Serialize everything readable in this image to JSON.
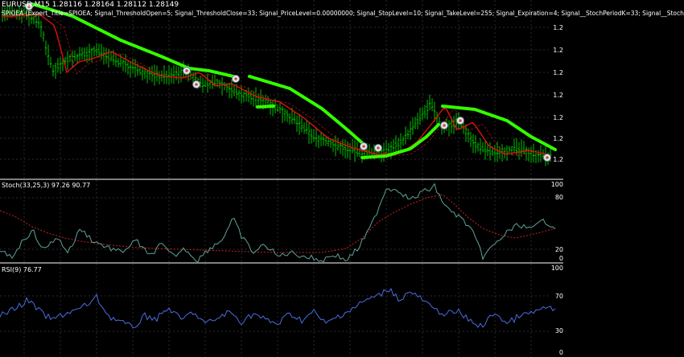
{
  "main": {
    "symbol_line": "EURUSD,M15  1.28116 1.28164 1.28112 1.28149",
    "ea_line": "SPIOEA (Expert_Title=SPIOEA; Signal_ThresholdOpen=5; Signal_ThresholdClose=33; Signal_PriceLevel=0.00000000; Signal_StopLevel=10; Signal_TakeLevel=255; Signal_Expiration=4; Signal__StochPeriodK=33; Signal__Stoch",
    "scale": [
      "1.2",
      "1.2",
      "1.2",
      "1.2",
      "1.2",
      "1.2",
      "1.2"
    ],
    "colors": {
      "bars": "#00c000",
      "ma": "#e01010",
      "stop": "#33ff00",
      "grid": "#2a2a2a"
    }
  },
  "stoch": {
    "label": "Stoch(33,25,3) 97.26 90.77",
    "scale": [
      "100",
      "80",
      "20",
      "0"
    ],
    "colors": {
      "main": "#5fa39a",
      "signal": "#cc2020"
    }
  },
  "rsi": {
    "label": "RSI(9) 76.77",
    "scale": [
      "100",
      "70",
      "30",
      "0"
    ],
    "colors": {
      "line": "#4a6ee0"
    }
  }
}
